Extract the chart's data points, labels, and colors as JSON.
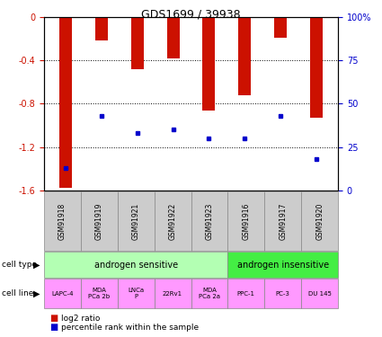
{
  "title": "GDS1699 / 39938",
  "samples": [
    "GSM91918",
    "GSM91919",
    "GSM91921",
    "GSM91922",
    "GSM91923",
    "GSM91916",
    "GSM91917",
    "GSM91920"
  ],
  "log2_ratio": [
    -1.58,
    -0.22,
    -0.48,
    -0.38,
    -0.86,
    -0.72,
    -0.19,
    -0.93
  ],
  "percentile_rank": [
    13,
    43,
    33,
    35,
    30,
    30,
    43,
    18
  ],
  "cell_type_groups": [
    {
      "label": "androgen sensitive",
      "start": 0,
      "end": 5,
      "color": "#b3ffb3"
    },
    {
      "label": "androgen insensitive",
      "start": 5,
      "end": 8,
      "color": "#44ee44"
    }
  ],
  "cell_lines": [
    "LAPC-4",
    "MDA\nPCa 2b",
    "LNCa\nP",
    "22Rv1",
    "MDA\nPCa 2a",
    "PPC-1",
    "PC-3",
    "DU 145"
  ],
  "cell_line_color": "#ff99ff",
  "sample_bg_color": "#cccccc",
  "bar_color": "#cc1100",
  "dot_color": "#0000cc",
  "ylim_left": [
    -1.6,
    0
  ],
  "ylim_right": [
    0,
    100
  ],
  "yticks_left": [
    -1.6,
    -1.2,
    -0.8,
    -0.4,
    0
  ],
  "yticks_right": [
    0,
    25,
    50,
    75,
    100
  ],
  "bar_width": 0.35
}
